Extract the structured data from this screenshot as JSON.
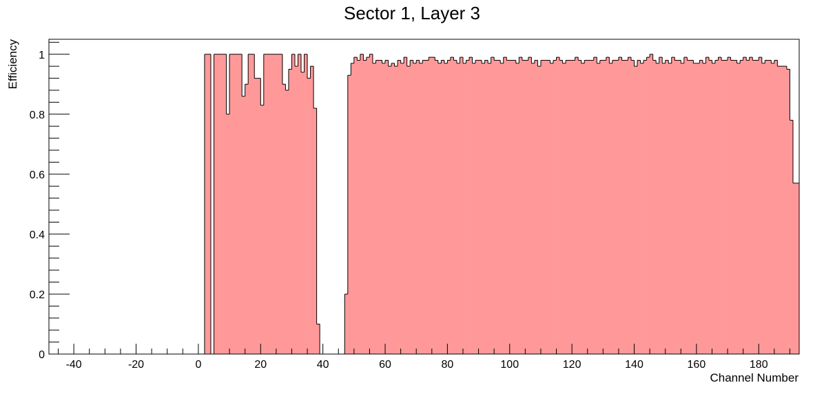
{
  "chart_data": {
    "type": "histogram",
    "title": "Sector 1, Layer 3",
    "xlabel": "Channel Number",
    "ylabel": "Efficiency",
    "xlim": [
      -48,
      193
    ],
    "ylim": [
      0,
      1.05
    ],
    "bin_width": 1,
    "x_ticks": [
      -40,
      -20,
      0,
      20,
      40,
      60,
      80,
      100,
      120,
      140,
      160,
      180
    ],
    "y_ticks": [
      0,
      0.2,
      0.4,
      0.6,
      0.8,
      1
    ],
    "y_tick_labels": [
      "0",
      "0.2",
      "0.4",
      "0.6",
      "0.8",
      "1"
    ],
    "grid": false,
    "fill_color": "#ff9999",
    "line_color": "#000000",
    "bins": [
      {
        "x": 2,
        "y": 1.0
      },
      {
        "x": 3,
        "y": 1.0
      },
      {
        "x": 4,
        "y": 0.0
      },
      {
        "x": 5,
        "y": 1.0
      },
      {
        "x": 6,
        "y": 1.0
      },
      {
        "x": 7,
        "y": 1.0
      },
      {
        "x": 8,
        "y": 1.0
      },
      {
        "x": 9,
        "y": 0.8
      },
      {
        "x": 10,
        "y": 1.0
      },
      {
        "x": 11,
        "y": 1.0
      },
      {
        "x": 12,
        "y": 1.0
      },
      {
        "x": 13,
        "y": 1.0
      },
      {
        "x": 14,
        "y": 0.86
      },
      {
        "x": 15,
        "y": 0.9
      },
      {
        "x": 16,
        "y": 1.0
      },
      {
        "x": 17,
        "y": 1.0
      },
      {
        "x": 18,
        "y": 0.92
      },
      {
        "x": 19,
        "y": 0.92
      },
      {
        "x": 20,
        "y": 0.83
      },
      {
        "x": 21,
        "y": 1.0
      },
      {
        "x": 22,
        "y": 1.0
      },
      {
        "x": 23,
        "y": 1.0
      },
      {
        "x": 24,
        "y": 1.0
      },
      {
        "x": 25,
        "y": 1.0
      },
      {
        "x": 26,
        "y": 1.0
      },
      {
        "x": 27,
        "y": 0.9
      },
      {
        "x": 28,
        "y": 0.88
      },
      {
        "x": 29,
        "y": 0.95
      },
      {
        "x": 30,
        "y": 1.0
      },
      {
        "x": 31,
        "y": 0.96
      },
      {
        "x": 32,
        "y": 1.0
      },
      {
        "x": 33,
        "y": 0.94
      },
      {
        "x": 34,
        "y": 1.0
      },
      {
        "x": 35,
        "y": 0.92
      },
      {
        "x": 36,
        "y": 0.96
      },
      {
        "x": 37,
        "y": 0.82
      },
      {
        "x": 38,
        "y": 0.1
      },
      {
        "x": 47,
        "y": 0.2
      },
      {
        "x": 48,
        "y": 0.93
      },
      {
        "x": 49,
        "y": 0.97
      },
      {
        "x": 50,
        "y": 0.99
      },
      {
        "x": 51,
        "y": 0.98
      },
      {
        "x": 52,
        "y": 1.0
      },
      {
        "x": 53,
        "y": 0.98
      },
      {
        "x": 54,
        "y": 0.99
      },
      {
        "x": 55,
        "y": 1.0
      },
      {
        "x": 56,
        "y": 0.97
      },
      {
        "x": 57,
        "y": 0.98
      },
      {
        "x": 58,
        "y": 0.98
      },
      {
        "x": 59,
        "y": 0.97
      },
      {
        "x": 60,
        "y": 0.98
      },
      {
        "x": 61,
        "y": 0.96
      },
      {
        "x": 62,
        "y": 0.97
      },
      {
        "x": 63,
        "y": 0.96
      },
      {
        "x": 64,
        "y": 0.98
      },
      {
        "x": 65,
        "y": 0.97
      },
      {
        "x": 66,
        "y": 0.99
      },
      {
        "x": 67,
        "y": 0.96
      },
      {
        "x": 68,
        "y": 0.98
      },
      {
        "x": 69,
        "y": 0.97
      },
      {
        "x": 70,
        "y": 0.98
      },
      {
        "x": 71,
        "y": 0.97
      },
      {
        "x": 72,
        "y": 0.98
      },
      {
        "x": 73,
        "y": 0.98
      },
      {
        "x": 74,
        "y": 0.99
      },
      {
        "x": 75,
        "y": 0.99
      },
      {
        "x": 76,
        "y": 0.98
      },
      {
        "x": 77,
        "y": 0.97
      },
      {
        "x": 78,
        "y": 0.98
      },
      {
        "x": 79,
        "y": 0.97
      },
      {
        "x": 80,
        "y": 0.98
      },
      {
        "x": 81,
        "y": 0.99
      },
      {
        "x": 82,
        "y": 0.98
      },
      {
        "x": 83,
        "y": 0.97
      },
      {
        "x": 84,
        "y": 0.99
      },
      {
        "x": 85,
        "y": 0.97
      },
      {
        "x": 86,
        "y": 0.98
      },
      {
        "x": 87,
        "y": 0.99
      },
      {
        "x": 88,
        "y": 0.97
      },
      {
        "x": 89,
        "y": 0.98
      },
      {
        "x": 90,
        "y": 0.98
      },
      {
        "x": 91,
        "y": 0.97
      },
      {
        "x": 92,
        "y": 0.98
      },
      {
        "x": 93,
        "y": 0.97
      },
      {
        "x": 94,
        "y": 0.99
      },
      {
        "x": 95,
        "y": 0.98
      },
      {
        "x": 96,
        "y": 0.98
      },
      {
        "x": 97,
        "y": 0.97
      },
      {
        "x": 98,
        "y": 0.99
      },
      {
        "x": 99,
        "y": 0.98
      },
      {
        "x": 100,
        "y": 0.98
      },
      {
        "x": 101,
        "y": 0.98
      },
      {
        "x": 102,
        "y": 0.97
      },
      {
        "x": 103,
        "y": 0.99
      },
      {
        "x": 104,
        "y": 0.98
      },
      {
        "x": 105,
        "y": 0.98
      },
      {
        "x": 106,
        "y": 0.99
      },
      {
        "x": 107,
        "y": 0.97
      },
      {
        "x": 108,
        "y": 0.98
      },
      {
        "x": 109,
        "y": 0.96
      },
      {
        "x": 110,
        "y": 0.98
      },
      {
        "x": 111,
        "y": 0.98
      },
      {
        "x": 112,
        "y": 0.98
      },
      {
        "x": 113,
        "y": 0.97
      },
      {
        "x": 114,
        "y": 0.98
      },
      {
        "x": 115,
        "y": 0.99
      },
      {
        "x": 116,
        "y": 0.98
      },
      {
        "x": 117,
        "y": 0.97
      },
      {
        "x": 118,
        "y": 0.98
      },
      {
        "x": 119,
        "y": 0.98
      },
      {
        "x": 120,
        "y": 0.98
      },
      {
        "x": 121,
        "y": 0.99
      },
      {
        "x": 122,
        "y": 0.98
      },
      {
        "x": 123,
        "y": 0.97
      },
      {
        "x": 124,
        "y": 0.98
      },
      {
        "x": 125,
        "y": 0.98
      },
      {
        "x": 126,
        "y": 0.98
      },
      {
        "x": 127,
        "y": 0.99
      },
      {
        "x": 128,
        "y": 0.97
      },
      {
        "x": 129,
        "y": 0.98
      },
      {
        "x": 130,
        "y": 0.98
      },
      {
        "x": 131,
        "y": 0.99
      },
      {
        "x": 132,
        "y": 0.97
      },
      {
        "x": 133,
        "y": 0.98
      },
      {
        "x": 134,
        "y": 0.98
      },
      {
        "x": 135,
        "y": 0.99
      },
      {
        "x": 136,
        "y": 0.98
      },
      {
        "x": 137,
        "y": 0.98
      },
      {
        "x": 138,
        "y": 0.99
      },
      {
        "x": 139,
        "y": 0.98
      },
      {
        "x": 140,
        "y": 0.96
      },
      {
        "x": 141,
        "y": 0.98
      },
      {
        "x": 142,
        "y": 0.97
      },
      {
        "x": 143,
        "y": 0.98
      },
      {
        "x": 144,
        "y": 0.99
      },
      {
        "x": 145,
        "y": 1.0
      },
      {
        "x": 146,
        "y": 0.98
      },
      {
        "x": 147,
        "y": 0.97
      },
      {
        "x": 148,
        "y": 0.99
      },
      {
        "x": 149,
        "y": 0.97
      },
      {
        "x": 150,
        "y": 0.98
      },
      {
        "x": 151,
        "y": 0.97
      },
      {
        "x": 152,
        "y": 0.99
      },
      {
        "x": 153,
        "y": 0.98
      },
      {
        "x": 154,
        "y": 0.98
      },
      {
        "x": 155,
        "y": 0.97
      },
      {
        "x": 156,
        "y": 0.99
      },
      {
        "x": 157,
        "y": 0.98
      },
      {
        "x": 158,
        "y": 0.98
      },
      {
        "x": 159,
        "y": 0.97
      },
      {
        "x": 160,
        "y": 0.97
      },
      {
        "x": 161,
        "y": 0.98
      },
      {
        "x": 162,
        "y": 0.97
      },
      {
        "x": 163,
        "y": 0.99
      },
      {
        "x": 164,
        "y": 0.98
      },
      {
        "x": 165,
        "y": 0.97
      },
      {
        "x": 166,
        "y": 0.98
      },
      {
        "x": 167,
        "y": 0.99
      },
      {
        "x": 168,
        "y": 0.98
      },
      {
        "x": 169,
        "y": 0.98
      },
      {
        "x": 170,
        "y": 0.99
      },
      {
        "x": 171,
        "y": 0.98
      },
      {
        "x": 172,
        "y": 0.98
      },
      {
        "x": 173,
        "y": 0.97
      },
      {
        "x": 174,
        "y": 0.98
      },
      {
        "x": 175,
        "y": 0.99
      },
      {
        "x": 176,
        "y": 0.98
      },
      {
        "x": 177,
        "y": 0.99
      },
      {
        "x": 178,
        "y": 0.98
      },
      {
        "x": 179,
        "y": 0.98
      },
      {
        "x": 180,
        "y": 0.99
      },
      {
        "x": 181,
        "y": 0.97
      },
      {
        "x": 182,
        "y": 0.98
      },
      {
        "x": 183,
        "y": 0.98
      },
      {
        "x": 184,
        "y": 0.97
      },
      {
        "x": 185,
        "y": 0.98
      },
      {
        "x": 186,
        "y": 0.96
      },
      {
        "x": 187,
        "y": 0.96
      },
      {
        "x": 188,
        "y": 0.96
      },
      {
        "x": 189,
        "y": 0.95
      },
      {
        "x": 190,
        "y": 0.78
      },
      {
        "x": 191,
        "y": 0.57
      },
      {
        "x": 192,
        "y": 0.57
      }
    ]
  }
}
